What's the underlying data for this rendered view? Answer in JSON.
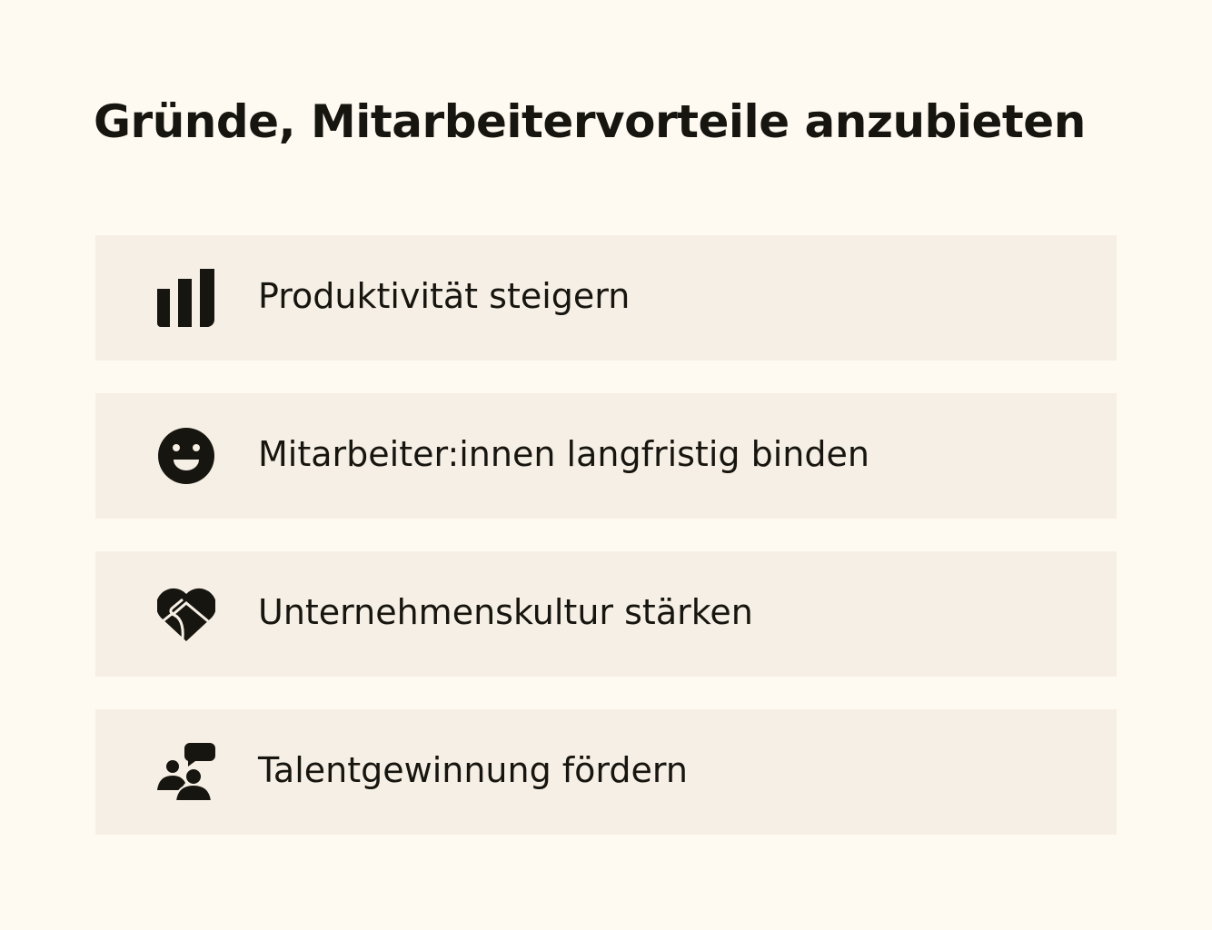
{
  "title": "Gründe, Mitarbeitervorteile anzubieten",
  "items": [
    {
      "label": "Produktivität steigern",
      "icon": "bar-chart-icon"
    },
    {
      "label": "Mitarbeiter:innen langfristig binden",
      "icon": "smiley-icon"
    },
    {
      "label": "Unternehmenskultur stärken",
      "icon": "handshake-heart-icon"
    },
    {
      "label": "Talentgewinnung fördern",
      "icon": "people-chat-icon"
    }
  ],
  "colors": {
    "background": "#fefaf2",
    "card": "#f6efe5",
    "text": "#17150f"
  }
}
